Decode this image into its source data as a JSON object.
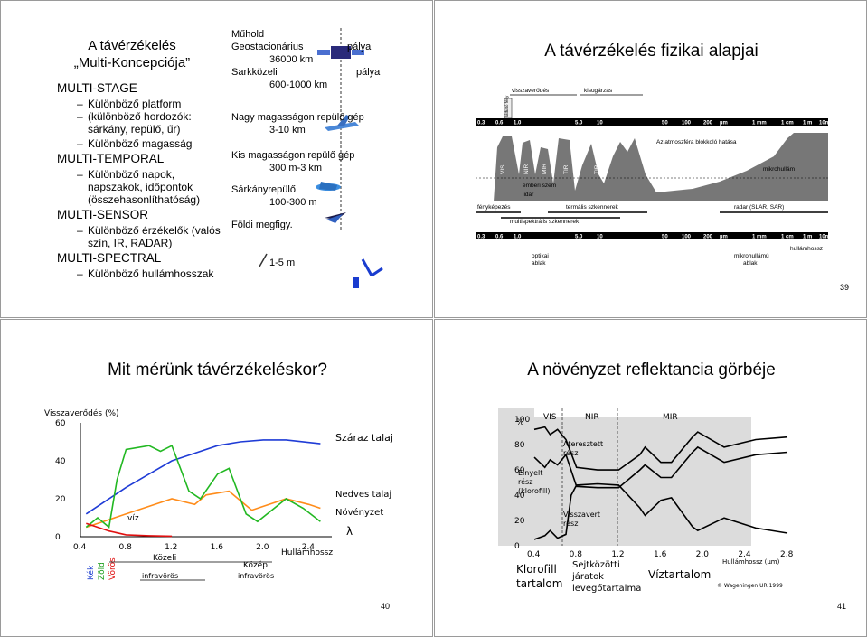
{
  "slide1": {
    "title_line1": "A távérzékelés",
    "title_line2": "„Multi-Koncepciója”",
    "items": [
      {
        "heading": "MULTI-STAGE",
        "subs": [
          "Különböző platform",
          "(különböző hordozók:",
          "sárkány, repülő, űr)",
          "Különböző magasság"
        ]
      },
      {
        "heading": "MULTI-TEMPORAL",
        "subs": [
          "Különböző napok,",
          "napszakok, időpontok",
          "(összehasonlíthatóság)"
        ]
      },
      {
        "heading": "MULTI-SENSOR",
        "subs": [
          "Különböző érzékelők (valós",
          "szín, IR, RADAR)"
        ]
      },
      {
        "heading": "MULTI-SPECTRAL",
        "subs": [
          "Különböző hullámhosszak"
        ]
      }
    ],
    "platforms": {
      "muhold": "Műhold",
      "geo": "Geostacionárius",
      "palya1": "pálya",
      "geo_alt": "36000 km",
      "sark": "Sarkközeli",
      "palya2": "pálya",
      "sark_alt": "600-1000 km",
      "nagy": "Nagy magasságon repülő gép",
      "nagy_alt": "3-10 km",
      "kis": "Kis magasságon repülő gép",
      "kis_alt": "300 m-3 km",
      "sarkany": "Sárkányrepülő",
      "sarkany_alt": "100-300 m",
      "foldi": "Földi megfigy.",
      "foldi_alt": "1-5 m"
    }
  },
  "slide2": {
    "title": "A távérzékelés fizikai alapjai",
    "top_labels": {
      "reflected": "visszaverődés",
      "emitted": "kisugárzás"
    },
    "scale": [
      "0.3",
      "0.6",
      "1.0",
      "5.0",
      "10",
      "50",
      "100",
      "200",
      "µm",
      "1 mm",
      "1 cm",
      "1 m",
      "10m"
    ],
    "visible_band": "látható fény",
    "bands": [
      "UV",
      "VIS",
      "NIR",
      "MIR",
      "TIR",
      "TIR"
    ],
    "atmo_label": "Az atmoszféra blokkoló hatása",
    "micro_label": "mikrohullám",
    "sensors": {
      "eye": "emberi szem",
      "lidar": "lidar",
      "photo": "fényképezés",
      "thermal": "termális szkennerek",
      "radar": "radar (SLAR, SAR)",
      "multi": "multispektrális szkennerek"
    },
    "bottom_labels": {
      "optical": "optikai",
      "window1": "ablak",
      "microwave": "mikrohullámú",
      "window2": "ablak",
      "wavelength": "hullámhossz"
    },
    "page": "39"
  },
  "slide3": {
    "title": "Mit mérünk távérzékeléskor?",
    "ylabel": "Visszaverődés  (%)",
    "yticks": [
      "60",
      "40",
      "20",
      "0"
    ],
    "xticks": [
      "0.4",
      "0.8",
      "1.2",
      "1.6",
      "2.0",
      "2.4"
    ],
    "xlabel": "Hullámhossz",
    "series": {
      "dry": "Száraz talaj",
      "wet": "Nedves talaj",
      "veg": "Növényzet",
      "water": "víz"
    },
    "lambda": "λ",
    "regions": {
      "kozeli": "Közeli",
      "kozep": "Közép",
      "infra1": "infravörös",
      "infra2": "infravörös"
    },
    "colors_label": {
      "blue": "Kék",
      "green": "Zöld",
      "red": "Vörös"
    },
    "page": "40"
  },
  "slide4": {
    "title": "A növényzet reflektancia görbéje",
    "ylabel": "%",
    "yticks": [
      "100",
      "80",
      "60",
      "40",
      "20",
      "0"
    ],
    "xticks": [
      "0.4",
      "0.8",
      "1.2",
      "1.6",
      "2.0",
      "2.4",
      "2.8"
    ],
    "regions": {
      "vis": "VIS",
      "nir": "NIR",
      "mir": "MIR"
    },
    "labels": {
      "transmit1": "Áteresztett",
      "transmit2": "rész",
      "absorb1": "Elnyelt",
      "absorb2": "rész",
      "absorb3": "(klorofill)",
      "reflect1": "Visszavert",
      "reflect2": "rész"
    },
    "bottom": {
      "chl1": "Klorofill",
      "chl2": "tartalom",
      "cell1": "Sejtközötti",
      "cell2": "járatok",
      "cell3": "levegőtartalma",
      "water": "Víztartalom",
      "wl": "Hullámhossz  (µm)",
      "copyright": "© Wageningen UR 1999"
    },
    "page": "41"
  },
  "colors": {
    "dry": "#1f3cd6",
    "wet": "#ff8c1a",
    "veg": "#22b822",
    "water": "#e01010"
  }
}
